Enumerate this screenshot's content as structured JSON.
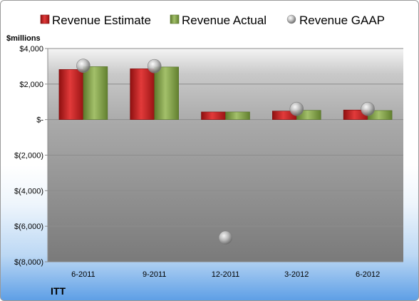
{
  "chart_data": {
    "type": "bar",
    "title": "",
    "unit_label": "$millions",
    "company": "ITT",
    "categories": [
      "6-2011",
      "9-2011",
      "12-2011",
      "3-2012",
      "6-2012"
    ],
    "series": [
      {
        "name": "Revenue Estimate",
        "kind": "bar",
        "color": "#d42424",
        "values": [
          2820,
          2860,
          430,
          480,
          540
        ]
      },
      {
        "name": "Revenue Actual",
        "kind": "bar",
        "color": "#93b15a",
        "values": [
          2980,
          2960,
          430,
          520,
          510
        ]
      },
      {
        "name": "Revenue GAAP",
        "kind": "marker",
        "color": "#a8a8a8",
        "values": [
          3030,
          3010,
          -6650,
          600,
          600
        ]
      }
    ],
    "ylim": [
      -8000,
      4000
    ],
    "yticks": [
      4000,
      2000,
      0,
      -2000,
      -4000,
      -6000,
      -8000
    ],
    "ytick_labels": [
      "$4,000",
      "$2,000",
      "$-",
      "$(2,000)",
      "$(4,000)",
      "$(6,000)",
      "$(8,000)"
    ],
    "grid": true,
    "legend_position": "top"
  }
}
